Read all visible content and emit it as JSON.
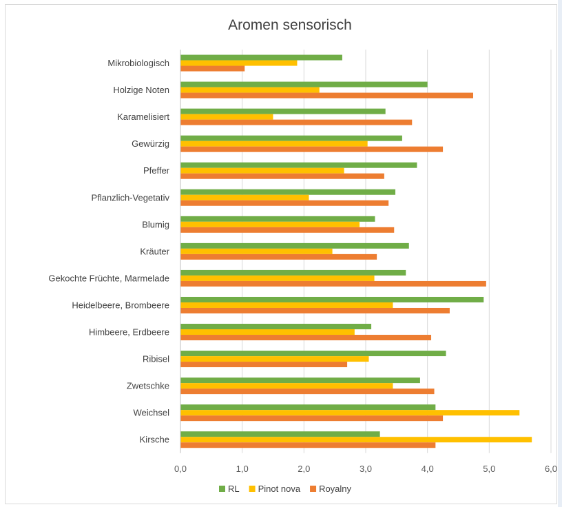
{
  "chart_data": {
    "type": "bar",
    "orientation": "horizontal",
    "title": "Aromen sensorisch",
    "xlabel": "",
    "ylabel": "",
    "xlim": [
      0,
      6
    ],
    "x_ticks": [
      "0,0",
      "1,0",
      "2,0",
      "3,0",
      "4,0",
      "5,0",
      "6,0"
    ],
    "grid": true,
    "legend_position": "bottom",
    "categories": [
      "Mikrobiologisch",
      "Holzige Noten",
      "Karamelisiert",
      "Gewürzig",
      "Pfeffer",
      "Pflanzlich-Vegetativ",
      "Blumig",
      "Kräuter",
      "Gekochte Früchte, Marmelade",
      "Heidelbeere, Brombeere",
      "Himbeere, Erdbeere",
      "Ribisel",
      "Zwetschke",
      "Weichsel",
      "Kirsche"
    ],
    "series": [
      {
        "name": "RL",
        "color": "#70ad47",
        "values": [
          2.62,
          4.0,
          3.32,
          3.59,
          3.83,
          3.48,
          3.15,
          3.7,
          3.65,
          4.91,
          3.09,
          4.3,
          3.88,
          4.13,
          3.23
        ]
      },
      {
        "name": "Pinot nova",
        "color": "#ffc000",
        "values": [
          1.89,
          2.25,
          1.5,
          3.03,
          2.65,
          2.08,
          2.9,
          2.46,
          3.14,
          3.44,
          2.82,
          3.05,
          3.44,
          5.49,
          5.69
        ]
      },
      {
        "name": "Royalny",
        "color": "#ed7d31",
        "values": [
          1.04,
          4.74,
          3.75,
          4.25,
          3.3,
          3.37,
          3.46,
          3.18,
          4.95,
          4.36,
          4.06,
          2.7,
          4.11,
          4.25,
          4.13
        ]
      }
    ]
  }
}
